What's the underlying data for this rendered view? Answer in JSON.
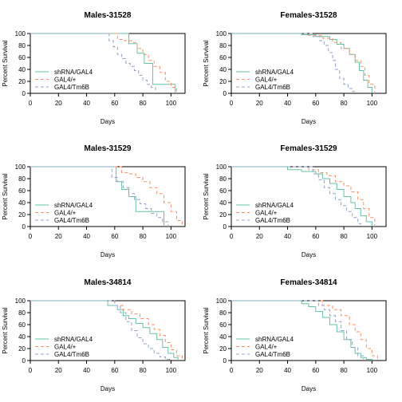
{
  "colors": {
    "shRNA/GAL4": "#66c2a5",
    "GAL4/+": "#fc8d62",
    "GAL4/Tm6B": "#8da0cb"
  },
  "chart_data": [
    {
      "type": "line",
      "title": "Males-31528",
      "xlabel": "Days",
      "ylabel": "Percent Survival",
      "xlim": [
        0,
        110
      ],
      "ylim": [
        0,
        100
      ],
      "xticks": [
        0,
        20,
        40,
        60,
        80,
        100
      ],
      "yticks": [
        0,
        20,
        40,
        60,
        80,
        100
      ],
      "legend_position": "bottom-left",
      "series": [
        {
          "name": "shRNA/GAL4",
          "dash": "solid",
          "x": [
            0,
            64,
            70,
            76,
            81,
            87,
            103
          ],
          "y": [
            100,
            100,
            83,
            67,
            50,
            15,
            0
          ]
        },
        {
          "name": "GAL4/+",
          "dash": "dashed",
          "x": [
            0,
            56,
            62,
            66,
            72,
            76,
            80,
            84,
            88,
            92,
            96,
            100,
            104
          ],
          "y": [
            100,
            100,
            90,
            88,
            85,
            75,
            65,
            55,
            45,
            35,
            20,
            10,
            0
          ]
        },
        {
          "name": "GAL4/Tm6B",
          "dash": "dashed",
          "x": [
            0,
            53,
            56,
            59,
            62,
            65,
            68,
            71,
            74,
            77,
            80,
            83,
            86,
            89
          ],
          "y": [
            100,
            100,
            88,
            78,
            65,
            58,
            50,
            45,
            38,
            30,
            22,
            15,
            10,
            0
          ]
        }
      ]
    },
    {
      "type": "line",
      "title": "Females-31528",
      "xlabel": "Days",
      "ylabel": "Percent Survival",
      "xlim": [
        0,
        110
      ],
      "ylim": [
        0,
        100
      ],
      "xticks": [
        0,
        20,
        40,
        60,
        80,
        100
      ],
      "yticks": [
        0,
        20,
        40,
        60,
        80,
        100
      ],
      "legend_position": "bottom-left",
      "series": [
        {
          "name": "shRNA/GAL4",
          "dash": "solid",
          "x": [
            0,
            40,
            50,
            60,
            70,
            75,
            80,
            84,
            88,
            91,
            94,
            97,
            100
          ],
          "y": [
            100,
            100,
            98,
            95,
            90,
            82,
            75,
            65,
            52,
            38,
            22,
            10,
            0
          ]
        },
        {
          "name": "GAL4/+",
          "dash": "dashed",
          "x": [
            0,
            45,
            55,
            65,
            72,
            78,
            84,
            88,
            92,
            95,
            98,
            102
          ],
          "y": [
            100,
            100,
            97,
            92,
            85,
            75,
            65,
            55,
            45,
            30,
            15,
            0
          ]
        },
        {
          "name": "GAL4/Tm6B",
          "dash": "dashed",
          "x": [
            0,
            50,
            58,
            63,
            66,
            69,
            72,
            74,
            77,
            80,
            83,
            86,
            88
          ],
          "y": [
            100,
            100,
            95,
            88,
            80,
            68,
            55,
            40,
            25,
            15,
            8,
            3,
            0
          ]
        }
      ]
    },
    {
      "type": "line",
      "title": "Males-31529",
      "xlabel": "Days",
      "ylabel": "Percent Survival",
      "xlim": [
        0,
        110
      ],
      "ylim": [
        0,
        100
      ],
      "xticks": [
        0,
        20,
        40,
        60,
        80,
        100
      ],
      "yticks": [
        0,
        20,
        40,
        60,
        80,
        100
      ],
      "legend_position": "bottom-left",
      "series": [
        {
          "name": "shRNA/GAL4",
          "dash": "solid",
          "x": [
            0,
            57,
            61,
            65,
            70,
            75,
            95
          ],
          "y": [
            100,
            100,
            75,
            62,
            50,
            25,
            0
          ]
        },
        {
          "name": "GAL4/+",
          "dash": "dashed",
          "x": [
            0,
            60,
            65,
            70,
            75,
            80,
            85,
            90,
            95,
            100,
            104,
            108
          ],
          "y": [
            100,
            100,
            90,
            88,
            82,
            75,
            65,
            55,
            40,
            25,
            10,
            0
          ]
        },
        {
          "name": "GAL4/Tm6B",
          "dash": "dashed",
          "x": [
            0,
            54,
            58,
            62,
            66,
            70,
            74,
            78,
            82,
            86,
            90,
            94,
            98
          ],
          "y": [
            100,
            100,
            82,
            75,
            65,
            55,
            45,
            38,
            30,
            22,
            15,
            8,
            0
          ]
        }
      ]
    },
    {
      "type": "line",
      "title": "Females-31529",
      "xlabel": "Days",
      "ylabel": "Percent Survival",
      "xlim": [
        0,
        110
      ],
      "ylim": [
        0,
        100
      ],
      "xticks": [
        0,
        20,
        40,
        60,
        80,
        100
      ],
      "yticks": [
        0,
        20,
        40,
        60,
        80,
        100
      ],
      "legend_position": "bottom-left",
      "series": [
        {
          "name": "shRNA/GAL4",
          "dash": "solid",
          "x": [
            0,
            30,
            40,
            50,
            60,
            65,
            70,
            75,
            80,
            85,
            88,
            92,
            96,
            100
          ],
          "y": [
            100,
            100,
            95,
            92,
            88,
            80,
            72,
            62,
            50,
            40,
            30,
            18,
            8,
            0
          ]
        },
        {
          "name": "GAL4/+",
          "dash": "dashed",
          "x": [
            0,
            45,
            55,
            62,
            68,
            74,
            80,
            85,
            90,
            94,
            98,
            102
          ],
          "y": [
            100,
            100,
            95,
            90,
            85,
            75,
            68,
            58,
            45,
            30,
            15,
            0
          ]
        },
        {
          "name": "GAL4/Tm6B",
          "dash": "dashed",
          "x": [
            0,
            50,
            58,
            62,
            66,
            70,
            74,
            78,
            82,
            86,
            90,
            92
          ],
          "y": [
            100,
            100,
            88,
            78,
            65,
            55,
            45,
            35,
            25,
            15,
            5,
            0
          ]
        }
      ]
    },
    {
      "type": "line",
      "title": "Males-34814",
      "xlabel": "Days",
      "ylabel": "Percent Survival",
      "xlim": [
        0,
        110
      ],
      "ylim": [
        0,
        100
      ],
      "xticks": [
        0,
        20,
        40,
        60,
        80,
        100
      ],
      "yticks": [
        0,
        20,
        40,
        60,
        80,
        100
      ],
      "legend_position": "bottom-left",
      "series": [
        {
          "name": "shRNA/GAL4",
          "dash": "solid",
          "x": [
            0,
            45,
            55,
            62,
            66,
            70,
            75,
            80,
            85,
            90,
            94,
            98,
            102,
            105
          ],
          "y": [
            100,
            100,
            92,
            85,
            75,
            70,
            62,
            55,
            45,
            35,
            22,
            12,
            5,
            0
          ]
        },
        {
          "name": "GAL4/+",
          "dash": "dashed",
          "x": [
            0,
            50,
            60,
            66,
            72,
            78,
            84,
            88,
            92,
            96,
            100,
            104,
            108
          ],
          "y": [
            100,
            100,
            92,
            85,
            78,
            70,
            60,
            52,
            42,
            30,
            18,
            8,
            0
          ]
        },
        {
          "name": "GAL4/Tm6B",
          "dash": "dashed",
          "x": [
            0,
            55,
            60,
            64,
            68,
            72,
            76,
            80,
            84,
            88,
            92,
            96,
            100
          ],
          "y": [
            100,
            100,
            92,
            80,
            65,
            50,
            38,
            28,
            20,
            12,
            6,
            2,
            0
          ]
        }
      ]
    },
    {
      "type": "line",
      "title": "Females-34814",
      "xlabel": "Days",
      "ylabel": "Percent Survival",
      "xlim": [
        0,
        110
      ],
      "ylim": [
        0,
        100
      ],
      "xticks": [
        0,
        20,
        40,
        60,
        80,
        100
      ],
      "yticks": [
        0,
        20,
        40,
        60,
        80,
        100
      ],
      "legend_position": "bottom-left",
      "series": [
        {
          "name": "shRNA/GAL4",
          "dash": "solid",
          "x": [
            0,
            40,
            50,
            55,
            60,
            65,
            70,
            75,
            80,
            85,
            88,
            92,
            96,
            100
          ],
          "y": [
            100,
            100,
            95,
            90,
            82,
            72,
            60,
            48,
            35,
            22,
            12,
            5,
            2,
            0
          ]
        },
        {
          "name": "GAL4/+",
          "dash": "dashed",
          "x": [
            0,
            55,
            65,
            72,
            78,
            84,
            88,
            92,
            96,
            100,
            104
          ],
          "y": [
            100,
            100,
            92,
            85,
            75,
            60,
            48,
            35,
            20,
            8,
            0
          ]
        },
        {
          "name": "GAL4/Tm6B",
          "dash": "dashed",
          "x": [
            0,
            55,
            62,
            66,
            70,
            74,
            78,
            82,
            86,
            90,
            94
          ],
          "y": [
            100,
            100,
            92,
            85,
            75,
            65,
            50,
            35,
            22,
            8,
            0
          ]
        }
      ]
    }
  ]
}
